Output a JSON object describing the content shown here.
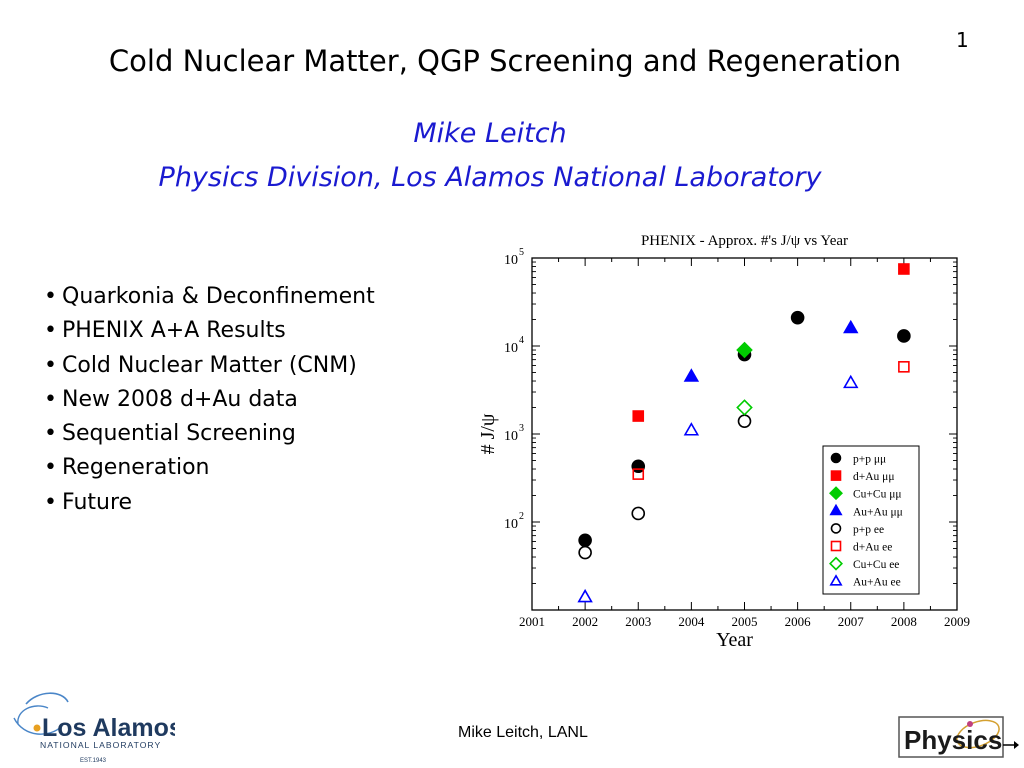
{
  "slide": {
    "page_number": "1",
    "title": "Cold Nuclear Matter, QGP Screening and Regeneration",
    "author": "Mike Leitch",
    "affiliation": "Physics Division, Los Alamos National Laboratory",
    "bullets": [
      "Quarkonia & Deconfinement",
      "PHENIX A+A Results",
      "Cold Nuclear Matter (CNM)",
      "New 2008 d+Au data",
      "Sequential Screening",
      "Regeneration",
      "Future"
    ],
    "footer": "Mike Leitch, LANL"
  },
  "logos": {
    "lanl_name": "Los Alamos",
    "lanl_sub": "NATIONAL LABORATORY",
    "lanl_est": "EST.1943",
    "physics": "Physics"
  },
  "chart_data": {
    "type": "scatter",
    "title": "PHENIX - Approx. #'s J/ψ vs Year",
    "xlabel": "Year",
    "ylabel": "# J/ψ",
    "xlim": [
      2001,
      2009
    ],
    "ylim": [
      10,
      100000
    ],
    "y_scale": "log",
    "x_ticks": [
      "2001",
      "2002",
      "2003",
      "2004",
      "2005",
      "2006",
      "2007",
      "2008",
      "2009"
    ],
    "y_ticks": [
      {
        "value": 100,
        "base": "10",
        "exp": "2"
      },
      {
        "value": 1000,
        "base": "10",
        "exp": "3"
      },
      {
        "value": 10000,
        "base": "10",
        "exp": "4"
      },
      {
        "value": 100000,
        "base": "10",
        "exp": "5"
      }
    ],
    "legend_position": "bottom-right",
    "series": [
      {
        "name": "p+p μμ",
        "marker": "circle",
        "filled": true,
        "color": "#000000",
        "points": [
          [
            2002,
            62
          ],
          [
            2003,
            430
          ],
          [
            2005,
            8000
          ],
          [
            2006,
            21000
          ],
          [
            2008,
            13000
          ]
        ]
      },
      {
        "name": "d+Au μμ",
        "marker": "square",
        "filled": true,
        "color": "#ff0000",
        "points": [
          [
            2003,
            1600
          ],
          [
            2008,
            75000
          ]
        ]
      },
      {
        "name": "Cu+Cu μμ",
        "marker": "diamond",
        "filled": true,
        "color": "#00cc00",
        "points": [
          [
            2005,
            9000
          ]
        ]
      },
      {
        "name": "Au+Au μμ",
        "marker": "triangle",
        "filled": true,
        "color": "#0000ff",
        "points": [
          [
            2004,
            4500
          ],
          [
            2007,
            16000
          ]
        ]
      },
      {
        "name": "p+p ee",
        "marker": "circle",
        "filled": false,
        "color": "#000000",
        "points": [
          [
            2002,
            45
          ],
          [
            2003,
            125
          ],
          [
            2005,
            1400
          ]
        ]
      },
      {
        "name": "d+Au ee",
        "marker": "square",
        "filled": false,
        "color": "#ff0000",
        "points": [
          [
            2003,
            350
          ],
          [
            2008,
            5800
          ]
        ]
      },
      {
        "name": "Cu+Cu ee",
        "marker": "diamond",
        "filled": false,
        "color": "#00cc00",
        "points": [
          [
            2005,
            2000
          ]
        ]
      },
      {
        "name": "Au+Au ee",
        "marker": "triangle",
        "filled": false,
        "color": "#0000ff",
        "points": [
          [
            2002,
            14
          ],
          [
            2004,
            1100
          ],
          [
            2007,
            3800
          ]
        ]
      }
    ]
  }
}
